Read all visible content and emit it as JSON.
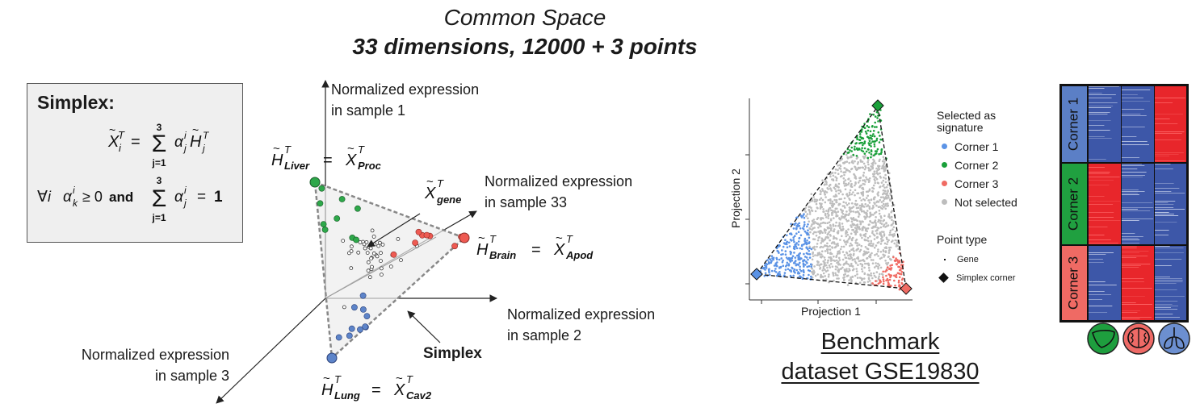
{
  "title": {
    "line1": "Common Space",
    "line2": "33 dimensions, 12000 + 3 points"
  },
  "simplex_box": {
    "heading": "Simplex:",
    "equation1": "X̃ᵢᵀ = Σⱼ₌₁³ αⱼⁱ H̃ⱼᵀ",
    "equation2": "∀i  αₖⁱ ≥ 0 and Σⱼ₌₁³ αⱼⁱ = 1"
  },
  "diagram3d": {
    "axis1": [
      "Normalized expression",
      "in sample 1"
    ],
    "axis2": [
      "Normalized expression",
      "in sample 2"
    ],
    "axis3": [
      "Normalized expression",
      "in sample 3"
    ],
    "axis33": [
      "Normalized expression",
      "in sample 33"
    ],
    "corner_liver": "H̃ᵀ_Liver = X̃ᵀ_Proc",
    "corner_brain": "H̃ᵀ_Brain = X̃ᵀ_Apod",
    "corner_lung": "H̃ᵀ_Lung = X̃ᵀ_Cav2",
    "gene_label": "X̃ᵀ_gene",
    "simplex_label": "Simplex"
  },
  "scatter": {
    "xlabel": "Projection 1",
    "ylabel": "Projection 2",
    "legend_title_selected": [
      "Selected as",
      "signature"
    ],
    "legend_selected": [
      {
        "name": "Corner 1",
        "color": "#5b93e6"
      },
      {
        "name": "Corner 2",
        "color": "#1aa03a"
      },
      {
        "name": "Corner 3",
        "color": "#f06b63"
      },
      {
        "name": "Not selected",
        "color": "#bdbdbd"
      }
    ],
    "legend_title_type": "Point type",
    "legend_type": [
      "Gene",
      "Simplex corner"
    ]
  },
  "benchmark": {
    "line1": "Benchmark",
    "line2": "dataset GSE19830"
  },
  "heatmap": {
    "rows": [
      {
        "label": "Corner 1",
        "color": "#5b7fc6"
      },
      {
        "label": "Corner 2",
        "color": "#20a040"
      },
      {
        "label": "Corner 3",
        "color": "#ef6a64"
      }
    ],
    "high_color": "#e8262b",
    "low_color": "#3d57a8",
    "tissue_icons": [
      {
        "name": "liver-icon",
        "color": "#1e9e3e"
      },
      {
        "name": "brain-icon",
        "color": "#ee6a66"
      },
      {
        "name": "lung-icon",
        "color": "#6c8fd0"
      }
    ]
  }
}
